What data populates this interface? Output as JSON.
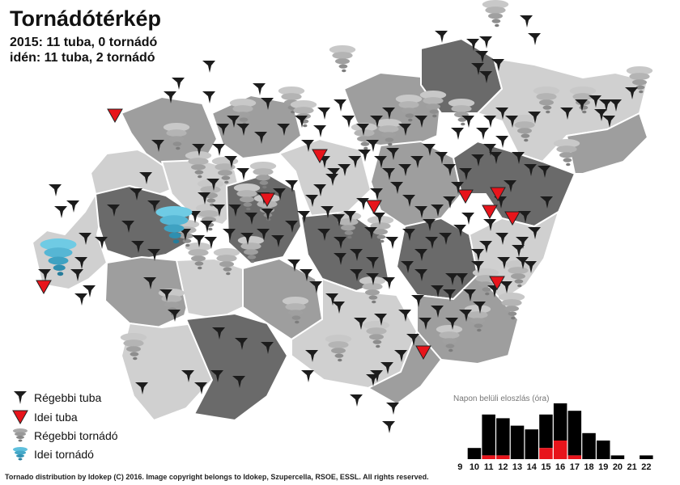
{
  "title": "Tornádótérkép",
  "stats": {
    "line1": "2015: 11 tuba, 0 tornádó",
    "line2": "idén: 11 tuba, 2 tornádó"
  },
  "legend": [
    {
      "label": "Régebbi tuba",
      "icon": "dark-funnel-icon"
    },
    {
      "label": "Idei tuba",
      "icon": "red-triangle-icon"
    },
    {
      "label": "Régebbi tornádó",
      "icon": "gray-tornado-icon"
    },
    {
      "label": "Idei tornádó",
      "icon": "blue-tornado-icon"
    }
  ],
  "credit": "Tornado distribution by Idokep (C) 2016. Image copyright belongs to Idokep, Szupercella, RSOE, ESSL. All rights reserved.",
  "colors": {
    "old_tuba": "#1c1c1c",
    "new_tuba": "#e8141b",
    "old_tornado": "#9a9a9a",
    "new_tornado": "#3ea6c8",
    "region_light": "#d0d0d0",
    "region_mid": "#9e9e9e",
    "region_dark": "#6a6a6a"
  },
  "chart_data": {
    "type": "bar",
    "title": "Napon belüli eloszlás (óra)",
    "categories": [
      "9",
      "10",
      "11",
      "12",
      "13",
      "14",
      "15",
      "16",
      "17",
      "18",
      "19",
      "20",
      "21",
      "22"
    ],
    "series": [
      {
        "name": "Régebbi tuba",
        "values": [
          0,
          3,
          11,
          10,
          9,
          8,
          9,
          10,
          12,
          7,
          5,
          1,
          0,
          1
        ]
      },
      {
        "name": "Idei tuba",
        "values": [
          0,
          0,
          1,
          1,
          0,
          0,
          3,
          5,
          1,
          0,
          0,
          0,
          0,
          0
        ]
      }
    ],
    "stacked": true,
    "ylim": [
      0,
      20
    ]
  }
}
